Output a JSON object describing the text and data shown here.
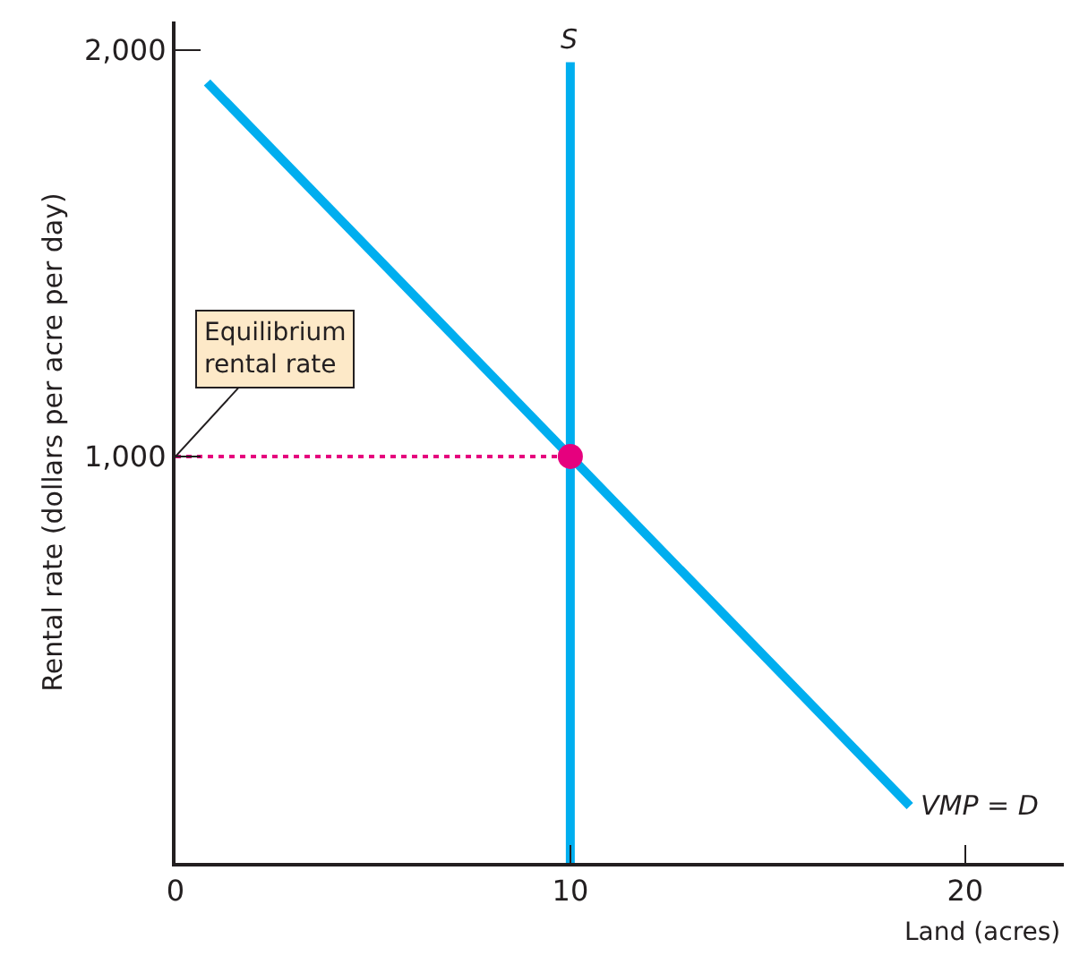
{
  "chart_data": {
    "type": "line",
    "xlabel": "Land (acres)",
    "ylabel": "Rental rate (dollars per acre per day)",
    "xlim": [
      0,
      22.5
    ],
    "ylim": [
      0,
      2070
    ],
    "xticks": [
      0,
      10,
      20
    ],
    "yticks": [
      {
        "value": 1000,
        "label": "1,000"
      },
      {
        "value": 2000,
        "label": "2,000"
      }
    ],
    "legend": false,
    "marker": "none",
    "line_style": "solid",
    "series": [
      {
        "name": "VMP = D",
        "color": "#00aeef",
        "x": [
          0.8,
          18.6
        ],
        "values": [
          1920,
          140
        ]
      },
      {
        "name": "S",
        "color": "#00aeef",
        "x": [
          10,
          10
        ],
        "values": [
          0,
          1970
        ]
      },
      {
        "color": "#e6007e",
        "x": [
          0,
          10
        ],
        "values": [
          1000,
          1000
        ],
        "line_style": "dotted"
      },
      {
        "type": "scatter",
        "marker": "circle",
        "color": "#e6007e",
        "x": [
          10
        ],
        "values": [
          1000
        ]
      }
    ],
    "annotations": [
      {
        "text": "Equilibrium\nrental rate",
        "x": 0,
        "y": 1000
      }
    ]
  }
}
